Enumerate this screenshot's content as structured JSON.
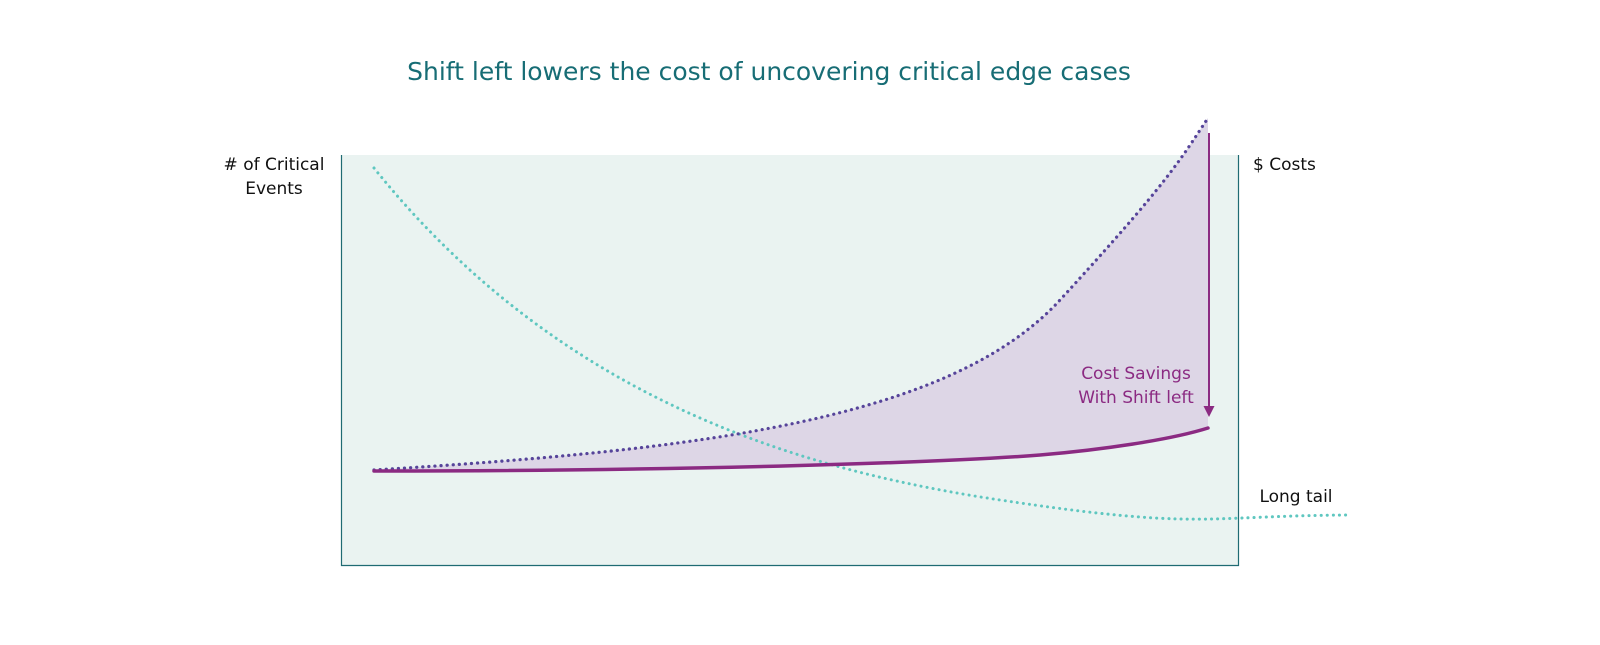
{
  "title": "Shift left lowers the cost of uncovering critical edge cases",
  "labels": {
    "left_axis": [
      "# of Critical",
      "Events"
    ],
    "right_axis": [
      "$ Costs"
    ],
    "savings": [
      "Cost Savings",
      "With Shift left"
    ],
    "tail": [
      "Long tail"
    ]
  }
}
